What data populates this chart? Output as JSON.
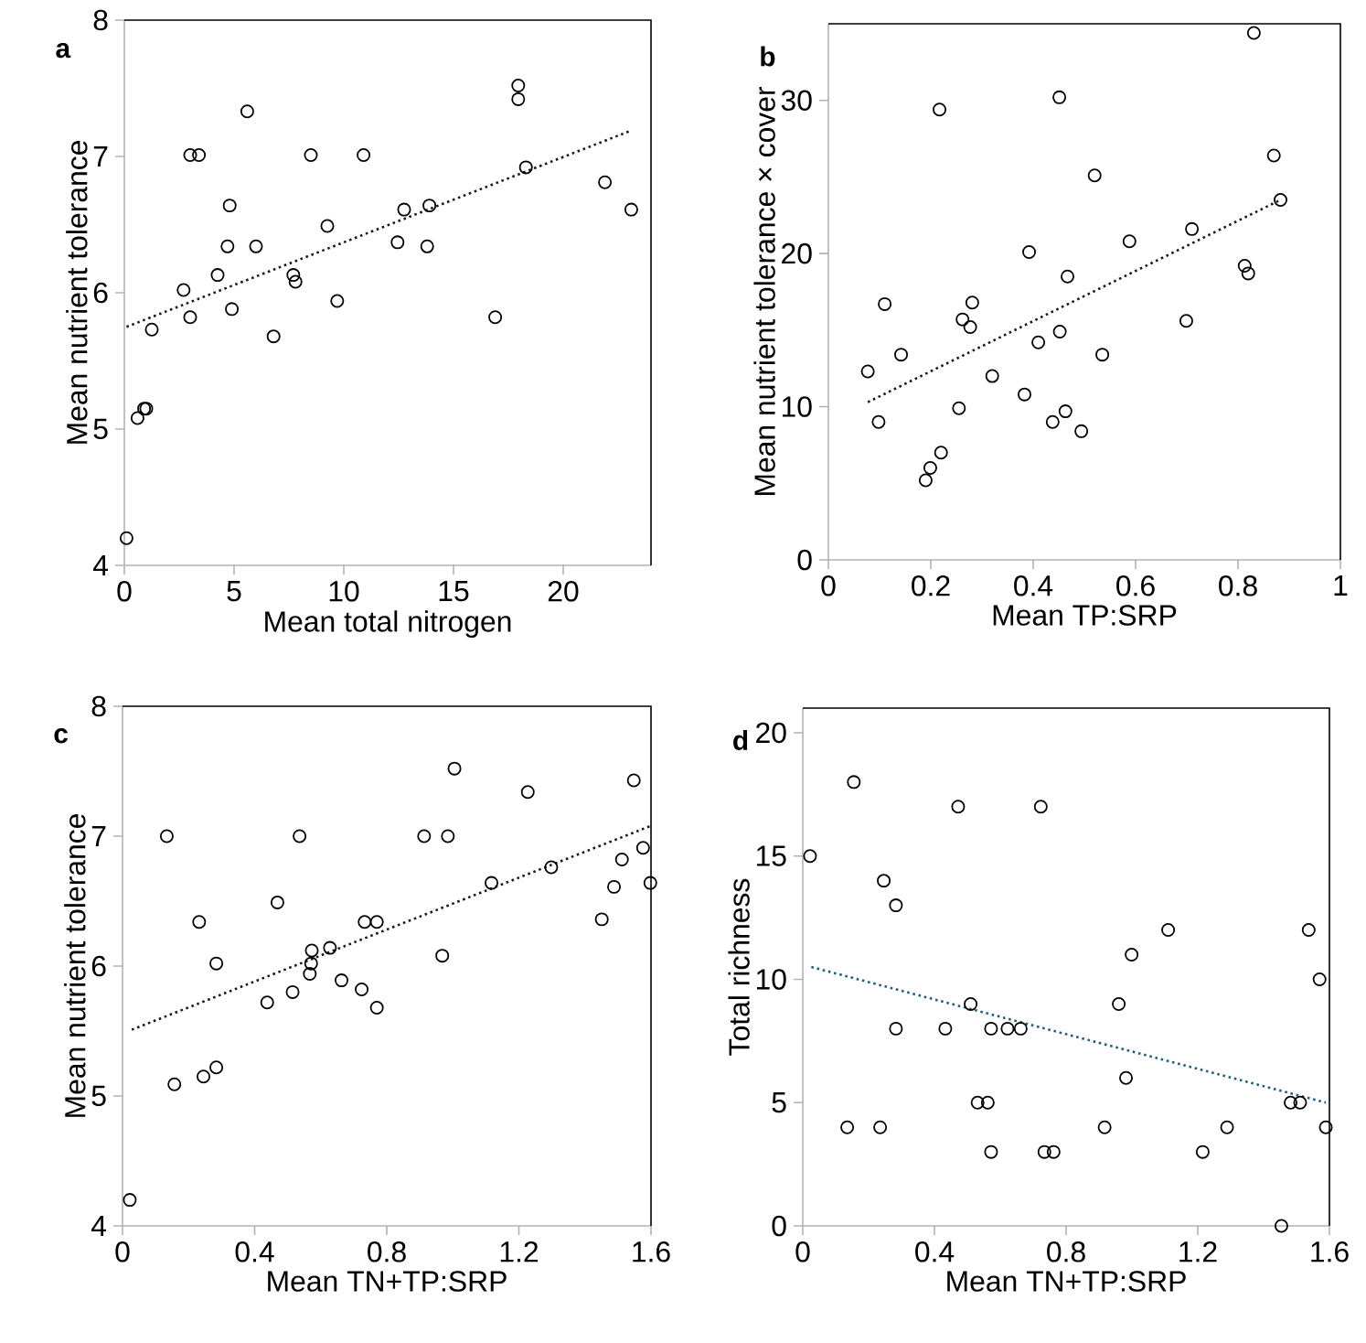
{
  "chart_data": [
    {
      "type": "scatter",
      "title": "a",
      "xlabel": "Mean total nitrogen",
      "ylabel": "Mean nutrient tolerance",
      "xlim": [
        0,
        24
      ],
      "xticks": [
        0,
        5,
        10,
        15,
        20
      ],
      "ylim": [
        4,
        8
      ],
      "yticks": [
        4,
        5,
        6,
        7,
        8
      ],
      "marker": "circle",
      "series": [
        {
          "color": "#000000",
          "x": [
            0.1,
            0.6,
            0.9,
            1.0,
            1.25,
            2.7,
            3.0,
            3.0,
            3.4,
            4.25,
            4.7,
            4.8,
            4.9,
            5.6,
            6.0,
            6.8,
            7.7,
            7.8,
            8.5,
            9.25,
            9.7,
            10.9,
            12.45,
            12.75,
            13.8,
            13.9,
            16.9,
            17.95,
            17.95,
            18.3,
            21.9,
            23.1
          ],
          "values": [
            4.2,
            5.08,
            5.15,
            5.15,
            5.73,
            6.02,
            5.82,
            7.01,
            7.01,
            6.13,
            6.34,
            6.64,
            5.88,
            7.33,
            6.34,
            5.68,
            6.13,
            6.08,
            7.01,
            6.49,
            5.94,
            7.01,
            6.37,
            6.61,
            6.34,
            6.64,
            5.82,
            7.52,
            7.42,
            6.92,
            6.81,
            6.61
          ]
        },
        {
          "type": "line",
          "color": "#1a1a1a",
          "marker": "none",
          "line_style": "dotted",
          "x": [
            0.1,
            23.1
          ],
          "values": [
            5.75,
            7.19
          ]
        }
      ]
    },
    {
      "type": "scatter",
      "title": "b",
      "xlabel": "Mean TP:SRP",
      "ylabel": "Mean nutrient tolerance × cover",
      "xlim": [
        0,
        1
      ],
      "xticks": [
        0,
        0.2,
        0.4,
        0.6,
        0.8,
        1
      ],
      "ylim": [
        0,
        35
      ],
      "yticks": [
        0,
        10,
        20,
        30
      ],
      "marker": "circle",
      "series": [
        {
          "color": "#000000",
          "x": [
            0.077,
            0.098,
            0.11,
            0.142,
            0.19,
            0.199,
            0.217,
            0.22,
            0.255,
            0.262,
            0.277,
            0.281,
            0.32,
            0.383,
            0.392,
            0.41,
            0.438,
            0.451,
            0.452,
            0.463,
            0.467,
            0.494,
            0.52,
            0.535,
            0.588,
            0.699,
            0.71,
            0.813,
            0.82,
            0.831,
            0.87,
            0.883
          ],
          "values": [
            12.3,
            9.0,
            16.7,
            13.4,
            5.2,
            6.0,
            29.4,
            7.0,
            9.9,
            15.7,
            15.2,
            16.8,
            12.0,
            10.8,
            20.1,
            14.2,
            9.0,
            30.2,
            14.9,
            9.7,
            18.5,
            8.4,
            25.1,
            13.4,
            20.8,
            15.6,
            21.6,
            19.2,
            18.7,
            34.4,
            26.4,
            23.5
          ]
        },
        {
          "type": "line",
          "color": "#1a1a1a",
          "marker": "none",
          "line_style": "dotted",
          "x": [
            0.077,
            0.883
          ],
          "values": [
            10.3,
            23.5
          ]
        }
      ]
    },
    {
      "type": "scatter",
      "title": "c",
      "xlabel": "Mean TN+TP:SRP",
      "ylabel": "Mean nutrient tolerance",
      "xlim": [
        0,
        1.6
      ],
      "xticks": [
        0,
        0.4,
        0.8,
        1.2,
        1.6
      ],
      "ylim": [
        4,
        8
      ],
      "yticks": [
        4,
        5,
        6,
        7,
        8
      ],
      "marker": "circle",
      "series": [
        {
          "color": "#000000",
          "x": [
            0.022,
            0.134,
            0.157,
            0.232,
            0.245,
            0.284,
            0.284,
            0.438,
            0.469,
            0.515,
            0.536,
            0.567,
            0.571,
            0.573,
            0.628,
            0.663,
            0.724,
            0.733,
            0.77,
            0.77,
            0.913,
            0.968,
            0.985,
            1.005,
            1.117,
            1.227,
            1.298,
            1.451,
            1.488,
            1.512,
            1.548,
            1.576,
            1.598
          ],
          "values": [
            4.2,
            7.0,
            5.09,
            6.34,
            5.15,
            5.22,
            6.02,
            5.72,
            6.49,
            5.8,
            7.0,
            5.94,
            6.02,
            6.12,
            6.14,
            5.89,
            5.82,
            6.34,
            6.34,
            5.68,
            7.0,
            6.08,
            7.0,
            7.52,
            6.64,
            7.34,
            6.76,
            6.36,
            6.61,
            6.82,
            7.43,
            6.91,
            6.64
          ]
        },
        {
          "type": "line",
          "color": "#1a1a1a",
          "marker": "none",
          "line_style": "dotted",
          "x": [
            0.028,
            1.6
          ],
          "values": [
            5.51,
            7.08
          ]
        }
      ]
    },
    {
      "type": "scatter",
      "title": "d",
      "xlabel": "Mean TN+TP:SRP",
      "ylabel": "Total richness",
      "xlim": [
        0,
        1.6
      ],
      "xticks": [
        0,
        0.4,
        0.8,
        1.2,
        1.6
      ],
      "ylim": [
        0,
        21
      ],
      "yticks": [
        0,
        5,
        10,
        15,
        20
      ],
      "marker": "circle",
      "series": [
        {
          "color": "#000000",
          "x": [
            0.022,
            0.135,
            0.155,
            0.235,
            0.246,
            0.283,
            0.283,
            0.433,
            0.472,
            0.51,
            0.531,
            0.562,
            0.572,
            0.572,
            0.622,
            0.662,
            0.723,
            0.734,
            0.762,
            0.917,
            0.96,
            0.982,
            0.999,
            1.11,
            1.215,
            1.289,
            1.454,
            1.482,
            1.511,
            1.537,
            1.57,
            1.589
          ],
          "values": [
            15,
            4,
            18,
            4,
            14,
            13,
            8,
            8,
            17,
            9,
            5,
            5,
            8,
            3,
            8,
            8,
            17,
            3,
            3,
            4,
            9,
            6,
            11,
            12,
            3,
            4,
            0,
            5,
            5,
            12,
            10,
            4
          ]
        },
        {
          "type": "line",
          "color": "#1f5f7a",
          "marker": "none",
          "line_style": "dotted",
          "x": [
            0.026,
            1.589
          ],
          "values": [
            10.5,
            5.0
          ]
        }
      ]
    }
  ]
}
